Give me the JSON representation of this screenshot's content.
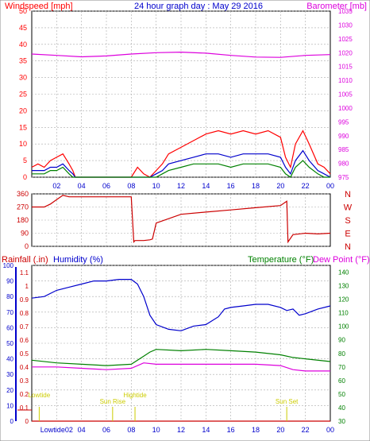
{
  "header": {
    "left_label": "Windspeed [mph]",
    "title": "24 hour graph day : May 29 2016",
    "right_label": "Barometer [mb]"
  },
  "colors": {
    "red": "#ff0000",
    "blue": "#0000cc",
    "green": "#008000",
    "magenta": "#dd00dd",
    "yellow": "#cccc00",
    "darkred": "#cc0000",
    "frame": "#000000",
    "grid": "#aaaaaa"
  },
  "chart_data": [
    {
      "type": "line",
      "panel": "wind",
      "left_axis": {
        "label": "Windspeed [mph]",
        "ylim": [
          0,
          50
        ],
        "ticks": [
          0,
          5,
          10,
          15,
          20,
          25,
          30,
          35,
          40,
          45,
          50
        ]
      },
      "right_axis": {
        "label": "Barometer [mb]",
        "ylim": [
          975,
          1035
        ],
        "ticks": [
          975,
          980,
          985,
          990,
          995,
          1000,
          1005,
          1010,
          1015,
          1020,
          1025,
          1030,
          1035
        ]
      },
      "x_ticks": [
        "02",
        "04",
        "06",
        "08",
        "10",
        "12",
        "14",
        "16",
        "18",
        "20",
        "22",
        "00"
      ],
      "series": [
        {
          "color": "#ff0000",
          "axis": "left",
          "x": [
            0,
            0.5,
            1,
            1.5,
            2,
            2.5,
            3,
            3.3,
            3.5,
            8,
            8.5,
            9,
            9.5,
            10,
            10.5,
            11,
            12,
            13,
            14,
            15,
            16,
            17,
            18,
            19,
            20,
            20.4,
            20.8,
            21.2,
            21.8,
            22.3,
            23,
            23.5,
            24
          ],
          "y": [
            3,
            4,
            3,
            5,
            6,
            7,
            4,
            2,
            0,
            0,
            3,
            1,
            0,
            2,
            4,
            7,
            9,
            11,
            13,
            14,
            13,
            14,
            13,
            14,
            12,
            6,
            3,
            10,
            14,
            10,
            4,
            3,
            1
          ]
        },
        {
          "color": "#0000cc",
          "axis": "left",
          "x": [
            0,
            0.5,
            1,
            1.5,
            2,
            2.5,
            3,
            3.3,
            3.5,
            8,
            9,
            9.5,
            10,
            10.5,
            11,
            12,
            13,
            14,
            15,
            16,
            17,
            18,
            19,
            20,
            20.4,
            20.8,
            21.2,
            21.8,
            22.3,
            23,
            23.5,
            24
          ],
          "y": [
            2,
            2,
            2,
            3,
            3,
            4,
            2,
            1,
            0,
            0,
            0,
            0,
            1,
            2,
            4,
            5,
            6,
            7,
            7,
            6,
            7,
            7,
            7,
            6,
            3,
            1,
            5,
            8,
            5,
            2,
            1,
            0
          ]
        },
        {
          "color": "#008000",
          "axis": "left",
          "x": [
            0,
            0.5,
            1,
            1.5,
            2,
            2.5,
            3,
            3.3,
            3.5,
            8,
            9,
            9.5,
            10,
            10.5,
            11,
            12,
            13,
            14,
            15,
            16,
            17,
            18,
            19,
            20,
            20.4,
            20.8,
            21.2,
            21.8,
            22.3,
            23,
            23.5,
            24
          ],
          "y": [
            1,
            1,
            1,
            2,
            2,
            3,
            1,
            0,
            0,
            0,
            0,
            0,
            0,
            1,
            2,
            3,
            4,
            4,
            4,
            3,
            4,
            4,
            4,
            3,
            1,
            0,
            3,
            5,
            3,
            1,
            0,
            0
          ]
        },
        {
          "color": "#dd00dd",
          "axis": "right",
          "x": [
            0,
            2,
            4,
            6,
            8,
            10,
            12,
            14,
            16,
            18,
            20,
            22,
            24
          ],
          "y": [
            1019.5,
            1019,
            1018.5,
            1018.8,
            1019.5,
            1020,
            1020.2,
            1019.8,
            1019,
            1018.4,
            1018.3,
            1019,
            1019.3
          ]
        }
      ]
    },
    {
      "type": "line",
      "panel": "wind_direction",
      "left_axis": {
        "ticks": [
          0,
          90,
          180,
          270,
          360
        ],
        "ylim": [
          0,
          360
        ]
      },
      "right_axis": {
        "ticks": [
          "N",
          "W",
          "S",
          "E",
          "N"
        ]
      },
      "series": [
        {
          "color": "#cc0000",
          "x": [
            0,
            1,
            1.5,
            2,
            2.5,
            3,
            8,
            8.2,
            8.3,
            9,
            9.5,
            9.7,
            10,
            12,
            14,
            16,
            18,
            20,
            20.5,
            20.6,
            21,
            22,
            23,
            24
          ],
          "y": [
            270,
            270,
            290,
            320,
            350,
            340,
            340,
            30,
            40,
            40,
            45,
            50,
            160,
            220,
            235,
            250,
            265,
            280,
            310,
            30,
            80,
            90,
            85,
            90
          ]
        }
      ]
    },
    {
      "type": "line",
      "panel": "temperature",
      "left_axis": {
        "labels": [
          "Rainfall (.in)",
          "Humidity (%)"
        ],
        "rain_ticks": [
          0,
          0.1,
          0.2,
          0.3,
          0.4,
          0.5,
          0.6,
          0.7,
          0.8,
          0.9,
          1,
          1.1
        ],
        "humidity_ticks": [
          0,
          10,
          20,
          30,
          40,
          50,
          60,
          70,
          80,
          90,
          100
        ],
        "ylim": [
          0,
          100
        ]
      },
      "right_axis": {
        "labels": [
          "Temperature (°F)",
          "Dew Point (°F)"
        ],
        "ticks": [
          30,
          40,
          50,
          60,
          70,
          80,
          90,
          100,
          110,
          120,
          130,
          140
        ],
        "ylim": [
          30,
          145
        ]
      },
      "x_ticks": [
        "Lowtide02",
        "04",
        "06",
        "08",
        "10",
        "12",
        "14",
        "16",
        "18",
        "20",
        "22",
        "00"
      ],
      "annotations": [
        {
          "text": "Lowtide",
          "x": 0.6
        },
        {
          "text": "Sun Rise",
          "x": 6.5
        },
        {
          "text": "Hightide",
          "x": 8.3
        },
        {
          "text": "Sun Set",
          "x": 20.5
        }
      ],
      "series": [
        {
          "color": "#0000cc",
          "axis": "left",
          "x": [
            0,
            1,
            2,
            3,
            4,
            5,
            6,
            7,
            8,
            8.5,
            9,
            9.5,
            10,
            11,
            12,
            13,
            14,
            15,
            15.5,
            16,
            17,
            18,
            19,
            20,
            20.5,
            21,
            21.5,
            22,
            23,
            24
          ],
          "y": [
            79,
            80,
            84,
            86,
            88,
            90,
            90,
            91,
            91,
            88,
            80,
            68,
            62,
            59,
            58,
            61,
            62,
            67,
            72,
            73,
            74,
            75,
            75,
            73,
            71,
            72,
            68,
            69,
            72,
            74
          ]
        },
        {
          "color": "#008000",
          "axis": "right",
          "x": [
            0,
            2,
            4,
            6,
            8,
            9,
            9.5,
            10,
            12,
            14,
            16,
            18,
            20,
            21,
            22,
            24
          ],
          "y": [
            75,
            73,
            72,
            71,
            72,
            78,
            81,
            83,
            82,
            83,
            82,
            81,
            79,
            77,
            76,
            74
          ]
        },
        {
          "color": "#dd00dd",
          "axis": "right",
          "x": [
            0,
            2,
            4,
            6,
            8,
            9,
            10,
            12,
            14,
            16,
            18,
            20,
            21,
            22,
            24
          ],
          "y": [
            70,
            70,
            69,
            68,
            69,
            73,
            72,
            72,
            72,
            72,
            72,
            71,
            68,
            67,
            67
          ]
        },
        {
          "color": "#cc0000",
          "axis": "left",
          "x": [
            0,
            24
          ],
          "y": [
            0,
            0
          ]
        }
      ]
    }
  ]
}
